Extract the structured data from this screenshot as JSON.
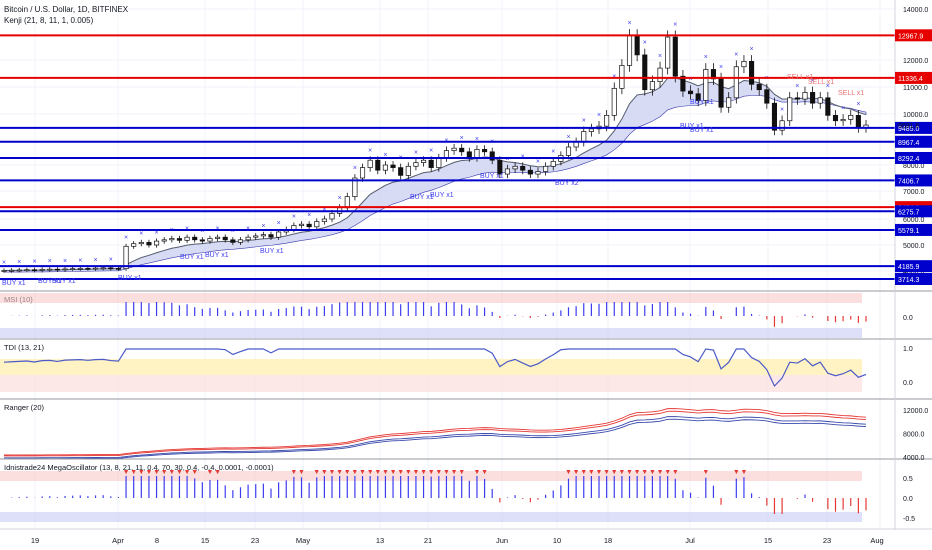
{
  "header": {
    "symbol": "Bitcoin / U.S. Dollar, 1D, BITFINEX",
    "indicator": "Kenji (21, 8, 11, 1, 0.005)"
  },
  "chart_data": {
    "type": "candlestick",
    "x_ticks": [
      "19",
      "Apr",
      "8",
      "15",
      "23",
      "May",
      "13",
      "21",
      "Jun",
      "10",
      "18",
      "Jul",
      "15",
      "23",
      "Aug"
    ],
    "y_ticks": [
      "14000.0",
      "12000.0",
      "11000.0",
      "10000.0",
      "9000.0",
      "8000.0",
      "7000.0",
      "6000.0",
      "5000.0",
      "4000.0"
    ],
    "last_price": "9591.6",
    "resistance_levels": [
      "12967.9",
      "11336.4",
      "6424.1"
    ],
    "support_levels": [
      "9485.0",
      "8967.4",
      "8292.4",
      "7406.7",
      "6275.7",
      "5579.1",
      "4185.9",
      "3714.3"
    ],
    "signals": {
      "buy": [
        "BUY x1",
        "BUY x1",
        "BUY x1",
        "BUY x1",
        "BUY x1",
        "BUY x1",
        "BUY x1",
        "BUY x1",
        "BUY x1",
        "BUY x1",
        "BUY x2",
        "BUY x1",
        "BUY x1",
        "BUY x1"
      ],
      "sell": [
        "SELL x1",
        "SELL x1",
        "SELL x1"
      ]
    },
    "closes": [
      4020,
      4030,
      4040,
      4050,
      4030,
      4060,
      4070,
      4050,
      4080,
      4090,
      4100,
      4090,
      4110,
      4120,
      4100,
      4090,
      4950,
      5050,
      5100,
      5000,
      5150,
      5200,
      5250,
      5180,
      5300,
      5200,
      5150,
      5250,
      5300,
      5200,
      5100,
      5200,
      5300,
      5350,
      5400,
      5300,
      5500,
      5600,
      5750,
      5800,
      5700,
      5900,
      6000,
      6200,
      6400,
      6800,
      7500,
      7900,
      8200,
      7800,
      8000,
      7900,
      7600,
      7950,
      8100,
      8200,
      7900,
      8300,
      8600,
      8700,
      8550,
      8300,
      8650,
      8550,
      8200,
      7650,
      7850,
      7950,
      7800,
      7650,
      7750,
      7950,
      8150,
      8400,
      8750,
      8950,
      9350,
      9450,
      9550,
      9950,
      10950,
      11800,
      12950,
      12200,
      10900,
      11200,
      11700,
      12900,
      11400,
      10850,
      10750,
      10500,
      11650,
      11300,
      10250,
      10600,
      11750,
      11950,
      11100,
      10900,
      10400,
      9400,
      9750,
      10600,
      10550,
      10800,
      10400,
      10600,
      9950,
      9750,
      9800,
      9950,
      9500,
      9591
    ],
    "panels": [
      {
        "name": "MSI (10)",
        "ticks": [
          "0.0"
        ]
      },
      {
        "name": "TDI (13, 21)",
        "ticks": [
          "1.0",
          "0.0"
        ]
      },
      {
        "name": "Ranger (20)",
        "ticks": [
          "12000.0",
          "8000.0",
          "4000.0"
        ]
      },
      {
        "name": "Idnistrade24 MegaOscillator (13, 8, 21, 11, 0.4, 70, 30, 0.4, -0.4, 0.0001, -0.0001)",
        "ticks": [
          "0.5",
          "0.0",
          "-0.5"
        ]
      }
    ]
  },
  "colors": {
    "up": "#26a69a",
    "down": "#111111",
    "resistance": "#e60000",
    "support": "#0000cc",
    "signal": "#3d3df0",
    "band_fill": "#c8ccf0",
    "ma": "#5a6270"
  }
}
